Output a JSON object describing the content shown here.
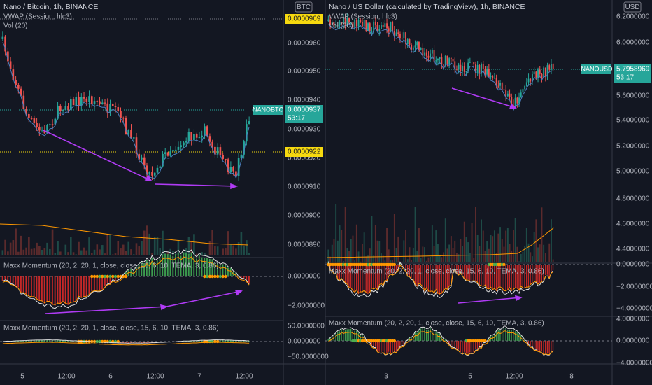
{
  "left": {
    "title": "Nano / Bitcoin, 1h, BINANCE",
    "vwap": "VWAP (Session, hlc3)",
    "vol": "Vol (20)",
    "currency": "BTC",
    "price_labels": [
      "0.0000960",
      "0.0000950",
      "0.0000940",
      "0.0000930",
      "0.0000920",
      "0.0000910",
      "0.0000900",
      "0.0000890"
    ],
    "badges": [
      "0.0000969",
      "0.0000922"
    ],
    "symbol": "NANOBTC",
    "last_price": "0.0000937",
    "countdown": "53:17",
    "panel2": {
      "title": "Maxx Momentum (20, 2, 20, 1, close, close, 15, 6, 10, TEMA, 3, 0.86)",
      "labels": [
        "0.0000000",
        "−2.0000000"
      ]
    },
    "panel3": {
      "title": "Maxx Momentum (20, 2, 20, 1, close, close, 15, 6, 10, TEMA, 3, 0.86)",
      "labels": [
        "50.0000000",
        "0.0000000",
        "−50.0000000"
      ]
    },
    "time_labels": [
      "5",
      "12:00",
      "6",
      "12:00",
      "7",
      "12:00"
    ]
  },
  "right": {
    "title": "Nano / US Dollar (calculated by TradingView), 1h, BINANCE",
    "vwap": "VWAP (Session, hlc3)",
    "vol": "Vol (20)",
    "currency": "USD",
    "price_labels": [
      "6.2000000",
      "6.0000000",
      "5.6000000",
      "5.4000000",
      "5.2000000",
      "5.0000000",
      "4.8000000",
      "4.6000000",
      "4.4000000"
    ],
    "symbol": "NANOUSD",
    "last_price": "5.7958969",
    "countdown": "53:17",
    "panel2": {
      "title": "Maxx Momentum (20, 2, 20, 1, close, close, 15, 6, 10, TEMA, 3, 0.86)",
      "labels": [
        "0.0000000",
        "−2.0000000",
        "−4.0000000"
      ]
    },
    "panel3": {
      "title": "Maxx Momentum (20, 2, 20, 1, close, close, 15, 6, 10, TEMA, 3, 0.86)",
      "labels": [
        "4.0000000",
        "0.0000000",
        "−4.0000000"
      ]
    },
    "time_labels": [
      "3",
      "5",
      "12:00",
      "8"
    ]
  }
}
